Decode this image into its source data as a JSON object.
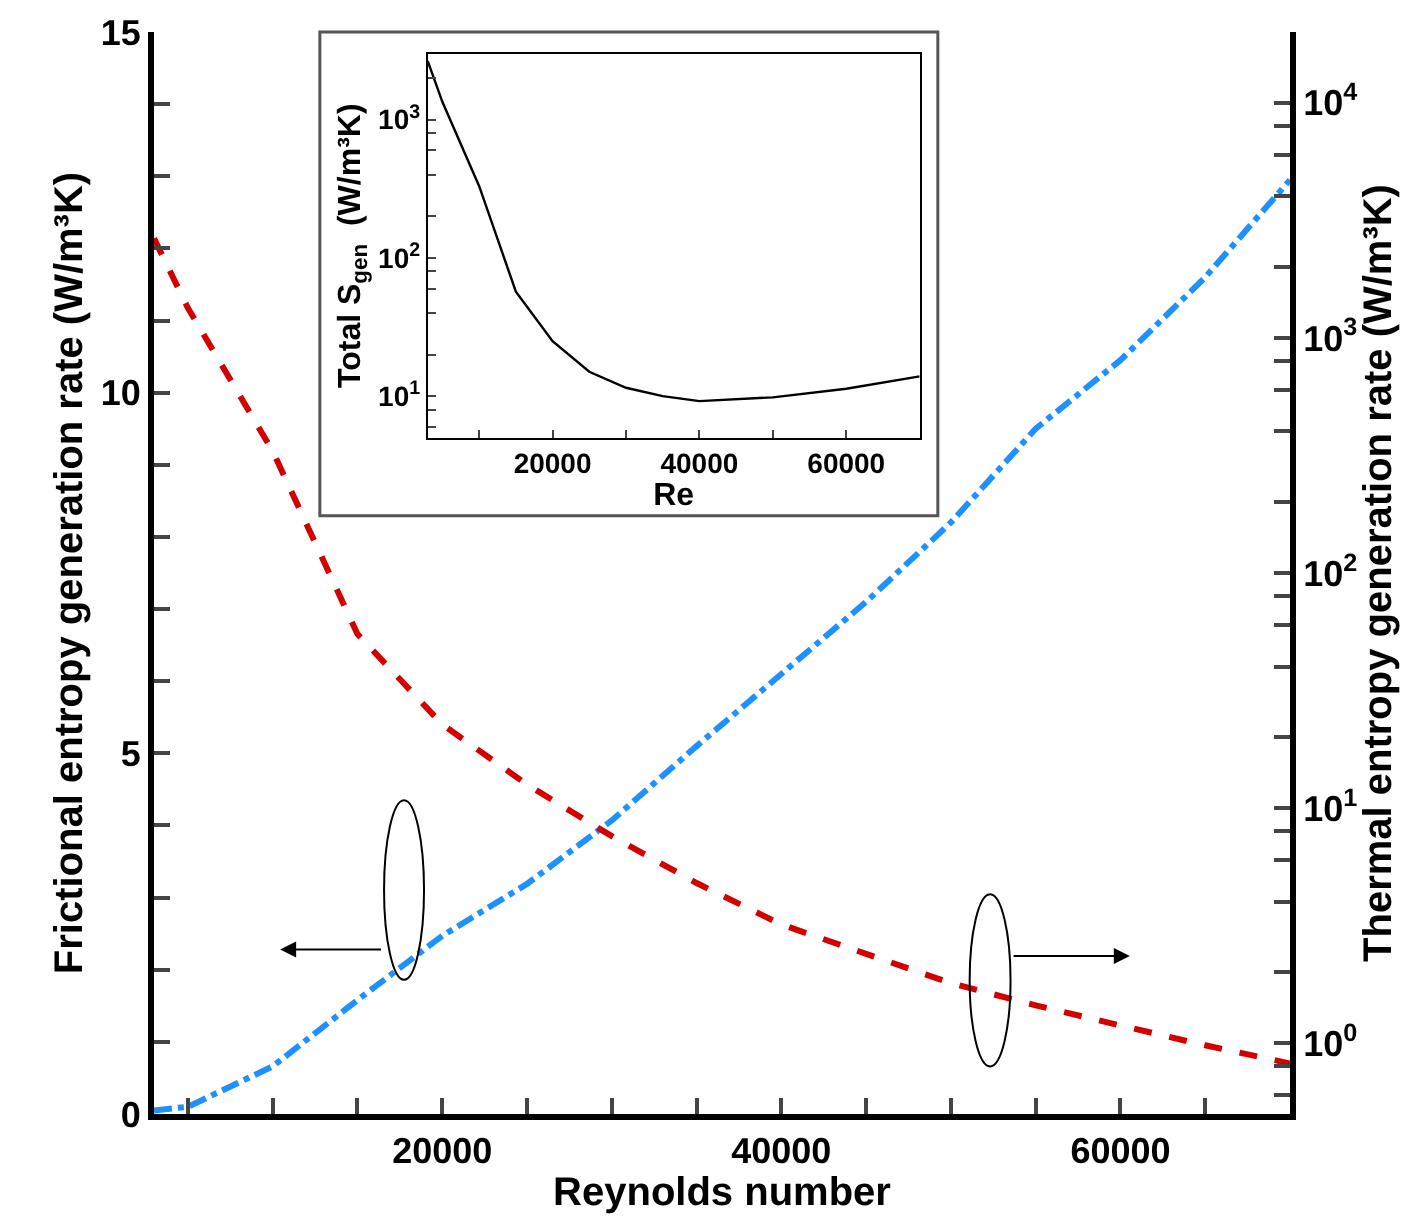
{
  "chart_data": [
    {
      "type": "line",
      "xlabel": "Reynolds number",
      "ylabel": "Frictional entropy generation rate (W/m³K)",
      "y2label": "Thermal entropy generation rate (W/m³K)",
      "x": [
        3000,
        5000,
        10000,
        15000,
        20000,
        25000,
        30000,
        35000,
        40000,
        45000,
        50000,
        55000,
        60000,
        65000,
        70000
      ],
      "series": [
        {
          "color": "#1e90ff",
          "line_style": "dashdot",
          "values": [
            0.05,
            0.1,
            0.66,
            1.58,
            2.47,
            3.19,
            4.07,
            5.1,
            6.1,
            7.1,
            8.2,
            9.5,
            10.45,
            11.6,
            12.95
          ]
        },
        {
          "color": "#d40000",
          "line_style": "dashed",
          "axis": "y2",
          "values": [
            2650,
            1340,
            330,
            55,
            22.7,
            12.6,
            7.6,
            4.8,
            3.2,
            2.4,
            1.8,
            1.45,
            1.19,
            0.98,
            0.82
          ]
        }
      ],
      "xlim": [
        3000,
        70000
      ],
      "xticks": [
        {
          "value": 5000,
          "label": null
        },
        {
          "value": 10000,
          "label": null
        },
        {
          "value": 15000,
          "label": null
        },
        20000,
        {
          "value": 25000,
          "label": null
        },
        {
          "value": 30000,
          "label": null
        },
        {
          "value": 35000,
          "label": null
        },
        40000,
        {
          "value": 45000,
          "label": null
        },
        {
          "value": 50000,
          "label": null
        },
        {
          "value": 55000,
          "label": null
        },
        60000,
        {
          "value": 65000,
          "label": null
        }
      ],
      "ylim": [
        0,
        15
      ],
      "yticks": [
        0,
        {
          "value": 1,
          "label": null
        },
        {
          "value": 2,
          "label": null
        },
        {
          "value": 3,
          "label": null
        },
        {
          "value": 4,
          "label": null
        },
        5,
        {
          "value": 6,
          "label": null
        },
        {
          "value": 7,
          "label": null
        },
        {
          "value": 8,
          "label": null
        },
        {
          "value": 9,
          "label": null
        },
        10,
        {
          "value": 11,
          "label": null
        },
        {
          "value": 12,
          "label": null
        },
        {
          "value": 13,
          "label": null
        },
        {
          "value": 14,
          "label": null
        },
        15
      ],
      "y2lim": [
        0.5,
        20000
      ],
      "y2ticks": [
        {
          "value": 0.6,
          "label": null
        },
        {
          "value": 0.8,
          "label": null
        },
        {
          "value": 1,
          "label": "10$^{0}$"
        },
        {
          "value": 2,
          "label": null
        },
        {
          "value": 4,
          "label": null
        },
        {
          "value": 6,
          "label": null
        },
        {
          "value": 8,
          "label": null
        },
        {
          "value": 10,
          "label": "10$^{1}$"
        },
        {
          "value": 20,
          "label": null
        },
        {
          "value": 40,
          "label": null
        },
        {
          "value": 60,
          "label": null
        },
        {
          "value": 80,
          "label": null
        },
        {
          "value": 100,
          "label": "10$^{2}$"
        },
        {
          "value": 200,
          "label": null
        },
        {
          "value": 400,
          "label": null
        },
        {
          "value": 600,
          "label": null
        },
        {
          "value": 800,
          "label": null
        },
        {
          "value": 1000,
          "label": "10$^{3}$"
        },
        {
          "value": 2000,
          "label": null
        },
        {
          "value": 4000,
          "label": null
        },
        {
          "value": 6000,
          "label": null
        },
        {
          "value": 8000,
          "label": null
        },
        {
          "value": 10000,
          "label": "10$^{4}$"
        }
      ],
      "log": "y2"
    },
    {
      "type": "line",
      "xlabel": "Re",
      "ylabel": "Total S$_{gen}$  (W/m³K)",
      "x": [
        3000,
        5000,
        10000,
        15000,
        20000,
        25000,
        30000,
        35000,
        40000,
        50000,
        60000,
        70000
      ],
      "series": [
        {
          "color": "#000000",
          "line_style": "solid",
          "values": [
            2650,
            1340,
            330,
            57,
            25,
            15,
            11.5,
            10,
            9.2,
            9.8,
            11.3,
            13.9
          ]
        }
      ],
      "xlim": [
        3000,
        70000
      ],
      "xticks": [
        {
          "value": 10000,
          "label": null
        },
        20000,
        {
          "value": 30000,
          "label": null
        },
        40000,
        {
          "value": 50000,
          "label": null
        },
        60000,
        {
          "value": 70000,
          "label": null
        }
      ],
      "ylim": [
        5,
        3000
      ],
      "yticks": [
        {
          "value": 6,
          "label": null
        },
        {
          "value": 8,
          "label": null
        },
        {
          "value": 10,
          "label": "10$^{1}$"
        },
        {
          "value": 20,
          "label": null
        },
        {
          "value": 40,
          "label": null
        },
        {
          "value": 60,
          "label": null
        },
        {
          "value": 80,
          "label": null
        },
        {
          "value": 100,
          "label": "10$^{2}$"
        },
        {
          "value": 200,
          "label": null
        },
        {
          "value": 400,
          "label": null
        },
        {
          "value": 600,
          "label": null
        },
        {
          "value": 800,
          "label": null
        },
        {
          "value": 1000,
          "label": "10$^{3}$"
        },
        {
          "value": 2000,
          "label": null
        }
      ],
      "log": "y"
    }
  ]
}
